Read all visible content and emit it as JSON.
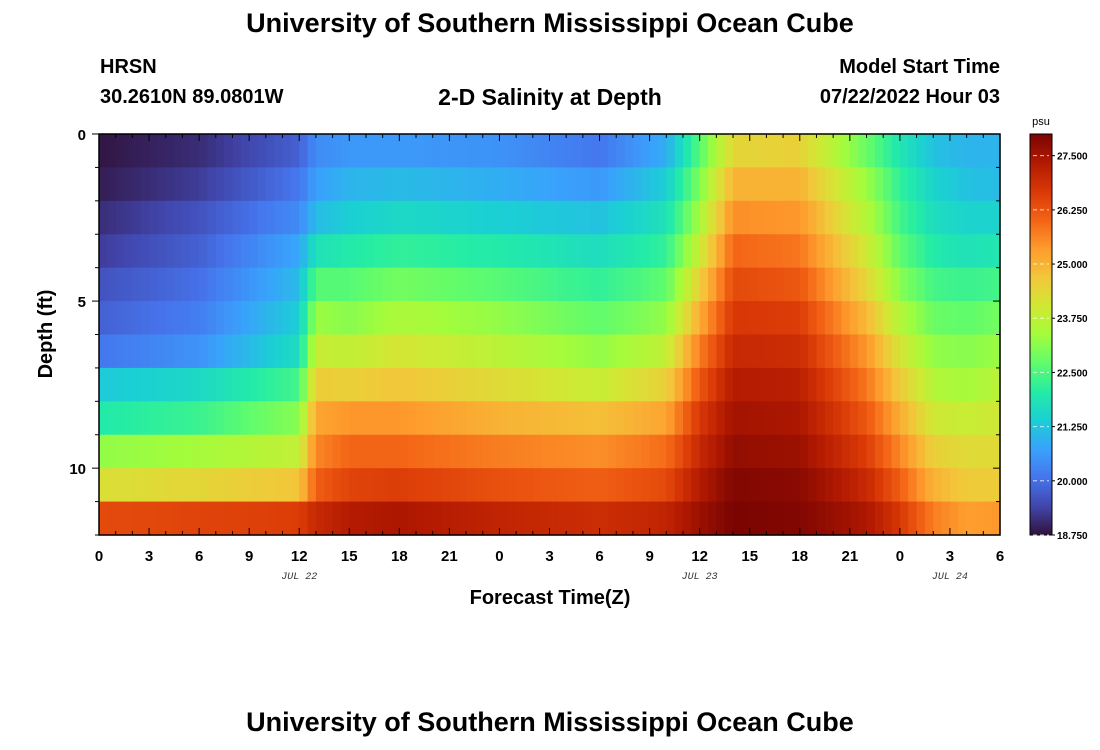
{
  "header": {
    "title": "University of Southern Mississippi Ocean Cube",
    "station": "HRSN",
    "coords": "30.2610N  89.0801W",
    "subtitle": "2-D Salinity at Depth",
    "model_label": "Model Start Time",
    "model_time": "07/22/2022 Hour 03"
  },
  "footer": {
    "title": "University of Southern Mississippi Ocean Cube"
  },
  "colors": {
    "colormap": [
      "#30123b",
      "#4145ab",
      "#4675ed",
      "#39a2fc",
      "#1bcfd4",
      "#24eca6",
      "#61fc6c",
      "#a4fc3b",
      "#d1e834",
      "#f3c63a",
      "#fe9b2d",
      "#f36315",
      "#d93806",
      "#b11901",
      "#7a0402"
    ]
  },
  "chart_data": {
    "type": "heatmap",
    "title": "2-D Salinity at Depth",
    "xlabel": "Forecast Time(Z)",
    "ylabel": "Depth (ft)",
    "x_tick_labels": [
      "0",
      "3",
      "6",
      "9",
      "12",
      "15",
      "18",
      "21",
      "0",
      "3",
      "6",
      "9",
      "12",
      "15",
      "18",
      "21",
      "0",
      "3",
      "6"
    ],
    "x_range_hours": [
      0,
      54
    ],
    "date_labels": [
      {
        "text": "JUL 22",
        "hour": 12
      },
      {
        "text": "JUL 23",
        "hour": 36
      },
      {
        "text": "JUL 24",
        "hour": 51
      }
    ],
    "y_ticks": [
      0,
      5,
      10
    ],
    "ylim": [
      0,
      12
    ],
    "depth_levels": 12,
    "colorbar": {
      "unit": "psu",
      "range": [
        18.75,
        28.0
      ],
      "tick_values": [
        27.5,
        26.25,
        25.0,
        23.75,
        22.5,
        21.25,
        20.0,
        18.75
      ],
      "tick_labels": [
        "27.500",
        "26.250",
        "25.000",
        "23.750",
        "22.500",
        "21.250",
        "20.000",
        "18.750"
      ]
    },
    "keyframes_hours": [
      0,
      6,
      12,
      13,
      15,
      18,
      24,
      30,
      34,
      36,
      38,
      42,
      46,
      48,
      50,
      52,
      54
    ],
    "salinity_psu": [
      [
        18.8,
        19.1,
        19.8,
        20.4,
        20.6,
        20.6,
        20.5,
        20.1,
        20.9,
        22.6,
        24.4,
        24.5,
        22.8,
        21.9,
        21.2,
        21.0,
        21.0
      ],
      [
        18.9,
        19.3,
        20.1,
        20.7,
        21.0,
        21.1,
        20.9,
        20.6,
        21.4,
        23.0,
        25.0,
        25.0,
        23.3,
        22.2,
        21.5,
        21.2,
        21.1
      ],
      [
        19.1,
        19.6,
        20.4,
        21.1,
        21.4,
        21.6,
        21.4,
        21.2,
        21.8,
        23.4,
        25.5,
        25.4,
        23.6,
        22.4,
        21.7,
        21.5,
        21.5
      ],
      [
        19.3,
        19.8,
        20.8,
        21.8,
        22.0,
        22.2,
        22.0,
        21.7,
        22.2,
        23.9,
        26.0,
        25.8,
        24.0,
        22.7,
        22.0,
        21.8,
        21.9
      ],
      [
        19.6,
        20.0,
        21.1,
        22.6,
        22.6,
        22.9,
        22.6,
        22.2,
        22.7,
        24.5,
        26.4,
        26.2,
        24.4,
        23.1,
        22.4,
        22.3,
        22.4
      ],
      [
        19.8,
        20.2,
        21.4,
        23.3,
        23.1,
        23.5,
        23.2,
        22.7,
        23.2,
        25.1,
        26.7,
        26.6,
        24.9,
        23.6,
        22.8,
        22.7,
        22.9
      ],
      [
        20.1,
        20.5,
        21.7,
        23.9,
        23.8,
        24.1,
        23.7,
        23.2,
        23.8,
        25.7,
        27.0,
        26.9,
        25.4,
        24.1,
        23.2,
        23.1,
        23.3
      ],
      [
        21.3,
        21.6,
        22.4,
        24.6,
        24.5,
        24.7,
        24.3,
        23.9,
        24.5,
        26.2,
        27.3,
        27.2,
        25.8,
        24.6,
        23.6,
        23.4,
        23.7
      ],
      [
        22.0,
        22.3,
        23.1,
        25.2,
        25.4,
        25.4,
        25.0,
        24.8,
        25.2,
        26.7,
        27.5,
        27.4,
        26.2,
        25.1,
        24.0,
        23.9,
        24.0
      ],
      [
        23.2,
        23.4,
        23.8,
        25.6,
        26.0,
        26.0,
        25.7,
        25.5,
        25.9,
        27.0,
        27.7,
        27.6,
        26.6,
        25.6,
        24.5,
        24.3,
        24.3
      ],
      [
        24.2,
        24.4,
        24.7,
        26.1,
        26.5,
        26.6,
        26.3,
        26.1,
        26.4,
        27.3,
        27.9,
        27.8,
        27.0,
        26.1,
        25.0,
        24.6,
        24.6
      ],
      [
        26.4,
        26.5,
        26.6,
        27.0,
        27.3,
        27.4,
        27.1,
        26.9,
        27.1,
        27.6,
        28.0,
        27.9,
        27.4,
        26.7,
        25.7,
        25.3,
        25.4
      ]
    ]
  }
}
